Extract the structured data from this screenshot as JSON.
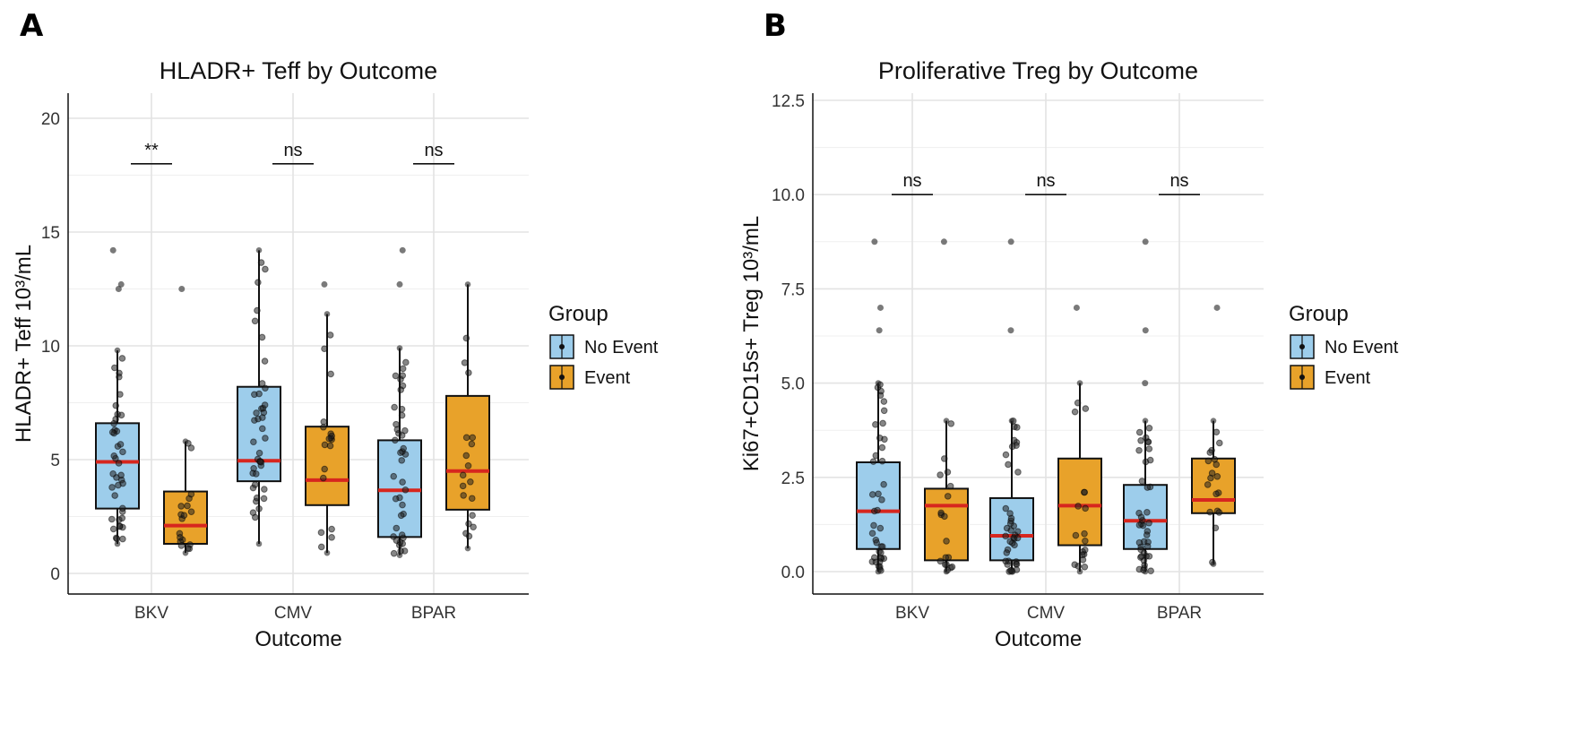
{
  "colors": {
    "no_event": "#9DCDEB",
    "event": "#E8A22A",
    "median": "#D7261E",
    "points": "#222222"
  },
  "chart_data": [
    {
      "panel_label": "A",
      "type": "box",
      "title": "HLADR+ Teff by Outcome",
      "xlabel": "Outcome",
      "ylabel": "HLADR+ Teff  10³/mL",
      "ylim": [
        0,
        21
      ],
      "yticks": [
        "0",
        "5",
        "10",
        "15",
        "20"
      ],
      "ytick_values": [
        0,
        5,
        10,
        15,
        20
      ],
      "categories": [
        "BKV",
        "CMV",
        "BPAR"
      ],
      "grid": true,
      "legend": {
        "title": "Group",
        "position": "right",
        "entries": [
          "No Event",
          "Event"
        ]
      },
      "significance": [
        "**",
        "ns",
        "ns"
      ],
      "sig_y": 18,
      "series": [
        {
          "name": "No Event",
          "boxes": [
            {
              "low": 1.3,
              "q1": 2.85,
              "median": 4.9,
              "q3": 6.6,
              "high": 9.8,
              "outliers": [
                12.5,
                12.7,
                14.2
              ]
            },
            {
              "low": 1.3,
              "q1": 4.05,
              "median": 4.95,
              "q3": 8.2,
              "high": 14.2,
              "outliers": []
            },
            {
              "low": 0.8,
              "q1": 1.6,
              "median": 3.65,
              "q3": 5.85,
              "high": 9.9,
              "outliers": [
                12.7,
                14.2
              ]
            }
          ]
        },
        {
          "name": "Event",
          "boxes": [
            {
              "low": 0.9,
              "q1": 1.3,
              "median": 2.1,
              "q3": 3.6,
              "high": 5.8,
              "outliers": [
                12.5
              ]
            },
            {
              "low": 0.9,
              "q1": 3.0,
              "median": 4.1,
              "q3": 6.45,
              "high": 11.4,
              "outliers": [
                12.7
              ]
            },
            {
              "low": 1.1,
              "q1": 2.8,
              "median": 4.5,
              "q3": 7.8,
              "high": 12.7,
              "outliers": []
            }
          ]
        }
      ]
    },
    {
      "panel_label": "B",
      "type": "box",
      "title": "Proliferative Treg by Outcome",
      "xlabel": "Outcome",
      "ylabel": "Ki67+CD15s+ Treg  10³/mL",
      "ylim": [
        -0.35,
        12.5
      ],
      "yticks": [
        "0.0",
        "2.5",
        "5.0",
        "7.5",
        "10.0",
        "12.5"
      ],
      "ytick_values": [
        0,
        2.5,
        5,
        7.5,
        10,
        12.5
      ],
      "categories": [
        "BKV",
        "CMV",
        "BPAR"
      ],
      "grid": true,
      "legend": {
        "title": "Group",
        "position": "right",
        "entries": [
          "No Event",
          "Event"
        ]
      },
      "significance": [
        "ns",
        "ns",
        "ns"
      ],
      "sig_y": 10,
      "series": [
        {
          "name": "No Event",
          "boxes": [
            {
              "low": 0,
              "q1": 0.6,
              "median": 1.6,
              "q3": 2.9,
              "high": 5.0,
              "outliers": [
                6.4,
                7.0,
                8.75
              ]
            },
            {
              "low": 0,
              "q1": 0.3,
              "median": 0.95,
              "q3": 1.95,
              "high": 4.0,
              "outliers": [
                6.4,
                8.75
              ]
            },
            {
              "low": 0,
              "q1": 0.6,
              "median": 1.35,
              "q3": 2.3,
              "high": 4.0,
              "outliers": [
                5.0,
                6.4,
                8.75
              ]
            }
          ]
        },
        {
          "name": "Event",
          "boxes": [
            {
              "low": 0,
              "q1": 0.3,
              "median": 1.75,
              "q3": 2.2,
              "high": 4.0,
              "outliers": [
                8.75
              ]
            },
            {
              "low": 0,
              "q1": 0.7,
              "median": 1.75,
              "q3": 3.0,
              "high": 5.0,
              "outliers": [
                7.0
              ]
            },
            {
              "low": 0.2,
              "q1": 1.55,
              "median": 1.9,
              "q3": 3.0,
              "high": 4.0,
              "outliers": [
                7.0
              ]
            }
          ]
        }
      ]
    }
  ]
}
